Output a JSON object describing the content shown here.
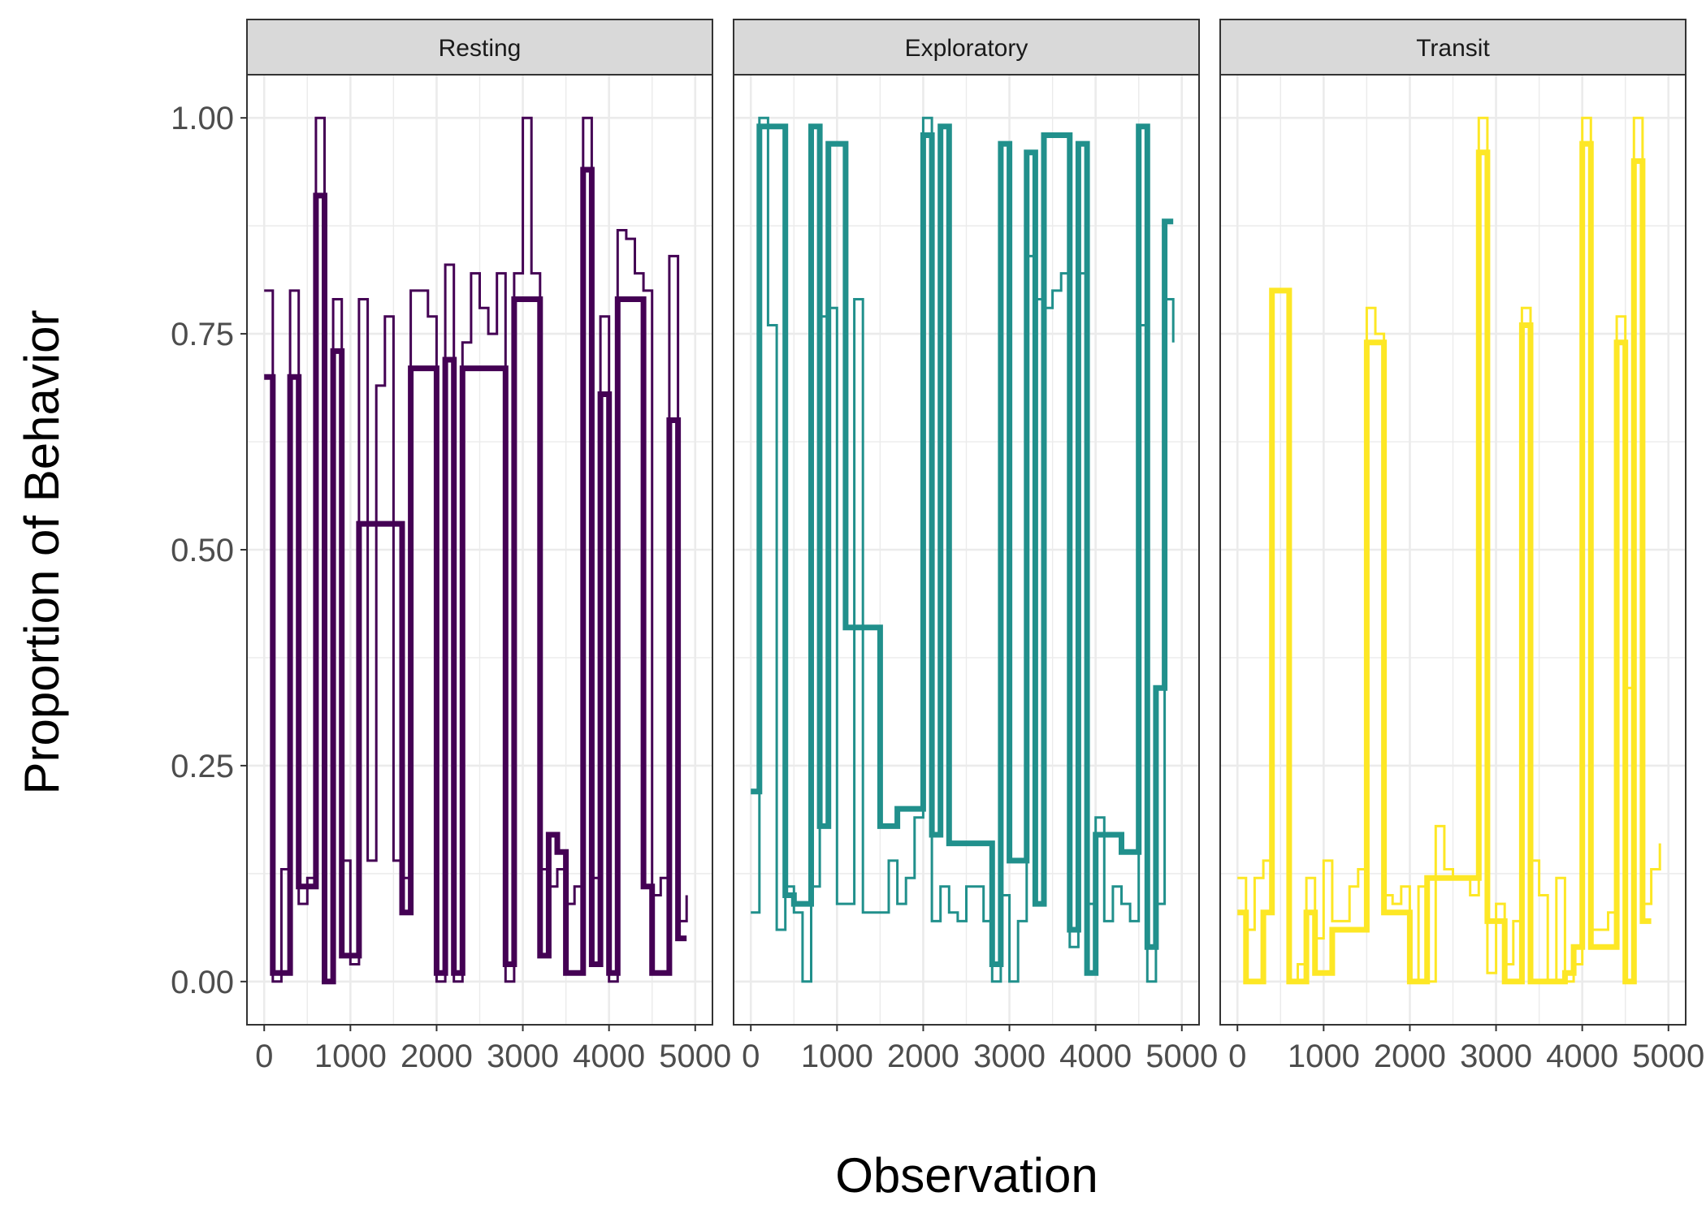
{
  "chart_data": {
    "type": "line",
    "facets": [
      "Resting",
      "Exploratory",
      "Transit"
    ],
    "xlabel": "Observation",
    "ylabel": "Proportion of Behavior",
    "x_ticks": [
      0,
      1000,
      2000,
      3000,
      4000,
      5000
    ],
    "x_tick_labels": [
      "0",
      "1000",
      "2000",
      "3000",
      "4000",
      "5000"
    ],
    "y_ticks": [
      0,
      0.25,
      0.5,
      0.75,
      1.0
    ],
    "y_tick_labels": [
      "0.00",
      "0.25",
      "0.50",
      "0.75",
      "1.00"
    ],
    "xlim": [
      -200,
      5200
    ],
    "ylim": [
      -0.05,
      1.05
    ],
    "grid": true,
    "colors": {
      "Resting": "#440154",
      "Exploratory": "#21908C",
      "Transit": "#FDE725",
      "strip_bg": "#D9D9D9",
      "grid": "#EBEBEB",
      "border": "#333333"
    },
    "panels": [
      {
        "name": "Resting",
        "thick": [
          [
            0,
            0.7
          ],
          [
            100,
            0.01
          ],
          [
            300,
            0.7
          ],
          [
            400,
            0.11
          ],
          [
            600,
            0.91
          ],
          [
            700,
            0.0
          ],
          [
            800,
            0.73
          ],
          [
            900,
            0.03
          ],
          [
            1100,
            0.53
          ],
          [
            1600,
            0.08
          ],
          [
            1700,
            0.71
          ],
          [
            2000,
            0.01
          ],
          [
            2100,
            0.72
          ],
          [
            2200,
            0.01
          ],
          [
            2300,
            0.71
          ],
          [
            2800,
            0.02
          ],
          [
            2900,
            0.79
          ],
          [
            3200,
            0.03
          ],
          [
            3300,
            0.17
          ],
          [
            3400,
            0.15
          ],
          [
            3500,
            0.01
          ],
          [
            3700,
            0.94
          ],
          [
            3800,
            0.02
          ],
          [
            3900,
            0.68
          ],
          [
            4000,
            0.01
          ],
          [
            4100,
            0.79
          ],
          [
            4400,
            0.11
          ],
          [
            4500,
            0.01
          ],
          [
            4700,
            0.65
          ],
          [
            4800,
            0.05
          ],
          [
            4900,
            0.05
          ]
        ],
        "thin": [
          [
            0,
            0.8
          ],
          [
            100,
            0.0
          ],
          [
            200,
            0.13
          ],
          [
            300,
            0.8
          ],
          [
            400,
            0.09
          ],
          [
            500,
            0.12
          ],
          [
            600,
            1.0
          ],
          [
            700,
            0.0
          ],
          [
            800,
            0.79
          ],
          [
            900,
            0.14
          ],
          [
            1000,
            0.02
          ],
          [
            1100,
            0.79
          ],
          [
            1200,
            0.14
          ],
          [
            1300,
            0.69
          ],
          [
            1400,
            0.77
          ],
          [
            1500,
            0.14
          ],
          [
            1600,
            0.12
          ],
          [
            1700,
            0.8
          ],
          [
            1900,
            0.77
          ],
          [
            2000,
            0.0
          ],
          [
            2100,
            0.83
          ],
          [
            2200,
            0.0
          ],
          [
            2300,
            0.74
          ],
          [
            2400,
            0.82
          ],
          [
            2500,
            0.78
          ],
          [
            2600,
            0.75
          ],
          [
            2700,
            0.82
          ],
          [
            2800,
            0.0
          ],
          [
            2900,
            0.82
          ],
          [
            3000,
            1.0
          ],
          [
            3100,
            0.82
          ],
          [
            3200,
            0.13
          ],
          [
            3300,
            0.11
          ],
          [
            3400,
            0.13
          ],
          [
            3500,
            0.09
          ],
          [
            3600,
            0.11
          ],
          [
            3700,
            1.0
          ],
          [
            3800,
            0.12
          ],
          [
            3900,
            0.77
          ],
          [
            4000,
            0.0
          ],
          [
            4100,
            0.87
          ],
          [
            4200,
            0.86
          ],
          [
            4300,
            0.82
          ],
          [
            4400,
            0.8
          ],
          [
            4500,
            0.1
          ],
          [
            4600,
            0.12
          ],
          [
            4700,
            0.84
          ],
          [
            4800,
            0.07
          ],
          [
            4900,
            0.1
          ]
        ]
      },
      {
        "name": "Exploratory",
        "thick": [
          [
            0,
            0.22
          ],
          [
            100,
            0.99
          ],
          [
            200,
            0.99
          ],
          [
            300,
            0.99
          ],
          [
            400,
            0.1
          ],
          [
            500,
            0.09
          ],
          [
            600,
            0.09
          ],
          [
            700,
            0.99
          ],
          [
            800,
            0.18
          ],
          [
            900,
            0.97
          ],
          [
            1100,
            0.41
          ],
          [
            1500,
            0.18
          ],
          [
            1700,
            0.2
          ],
          [
            2000,
            0.98
          ],
          [
            2100,
            0.17
          ],
          [
            2200,
            0.99
          ],
          [
            2300,
            0.16
          ],
          [
            2800,
            0.02
          ],
          [
            2900,
            0.97
          ],
          [
            3000,
            0.14
          ],
          [
            3200,
            0.96
          ],
          [
            3300,
            0.09
          ],
          [
            3400,
            0.98
          ],
          [
            3700,
            0.06
          ],
          [
            3800,
            0.97
          ],
          [
            3900,
            0.01
          ],
          [
            4000,
            0.17
          ],
          [
            4300,
            0.15
          ],
          [
            4500,
            0.99
          ],
          [
            4600,
            0.04
          ],
          [
            4700,
            0.34
          ],
          [
            4800,
            0.88
          ],
          [
            4900,
            0.88
          ]
        ],
        "thin": [
          [
            0,
            0.08
          ],
          [
            100,
            1.0
          ],
          [
            200,
            0.76
          ],
          [
            300,
            0.06
          ],
          [
            400,
            0.11
          ],
          [
            500,
            0.08
          ],
          [
            600,
            0.0
          ],
          [
            700,
            0.11
          ],
          [
            800,
            0.77
          ],
          [
            900,
            0.78
          ],
          [
            1000,
            0.09
          ],
          [
            1200,
            0.79
          ],
          [
            1300,
            0.08
          ],
          [
            1600,
            0.14
          ],
          [
            1700,
            0.09
          ],
          [
            1800,
            0.12
          ],
          [
            1900,
            0.19
          ],
          [
            2000,
            1.0
          ],
          [
            2100,
            0.07
          ],
          [
            2200,
            0.11
          ],
          [
            2300,
            0.08
          ],
          [
            2400,
            0.07
          ],
          [
            2500,
            0.11
          ],
          [
            2700,
            0.07
          ],
          [
            2800,
            0.0
          ],
          [
            2900,
            0.1
          ],
          [
            3000,
            0.0
          ],
          [
            3100,
            0.07
          ],
          [
            3200,
            0.84
          ],
          [
            3300,
            0.79
          ],
          [
            3400,
            0.78
          ],
          [
            3500,
            0.8
          ],
          [
            3600,
            0.82
          ],
          [
            3700,
            0.04
          ],
          [
            3800,
            0.82
          ],
          [
            3900,
            0.09
          ],
          [
            4000,
            0.19
          ],
          [
            4100,
            0.07
          ],
          [
            4200,
            0.11
          ],
          [
            4300,
            0.09
          ],
          [
            4400,
            0.07
          ],
          [
            4500,
            0.76
          ],
          [
            4600,
            0.0
          ],
          [
            4700,
            0.09
          ],
          [
            4800,
            0.79
          ],
          [
            4900,
            0.74
          ]
        ]
      },
      {
        "name": "Transit",
        "thick": [
          [
            0,
            0.08
          ],
          [
            100,
            0.0
          ],
          [
            300,
            0.08
          ],
          [
            400,
            0.8
          ],
          [
            600,
            0.0
          ],
          [
            800,
            0.08
          ],
          [
            900,
            0.01
          ],
          [
            1100,
            0.06
          ],
          [
            1500,
            0.74
          ],
          [
            1700,
            0.08
          ],
          [
            2000,
            0.0
          ],
          [
            2200,
            0.12
          ],
          [
            2800,
            0.96
          ],
          [
            2900,
            0.07
          ],
          [
            3100,
            0.0
          ],
          [
            3300,
            0.76
          ],
          [
            3400,
            0.0
          ],
          [
            3800,
            0.01
          ],
          [
            3900,
            0.04
          ],
          [
            4000,
            0.97
          ],
          [
            4100,
            0.04
          ],
          [
            4400,
            0.74
          ],
          [
            4500,
            0.0
          ],
          [
            4600,
            0.95
          ],
          [
            4700,
            0.07
          ],
          [
            4800,
            0.07
          ]
        ],
        "thin": [
          [
            0,
            0.12
          ],
          [
            100,
            0.06
          ],
          [
            200,
            0.12
          ],
          [
            300,
            0.14
          ],
          [
            400,
            0.8
          ],
          [
            600,
            0.0
          ],
          [
            700,
            0.02
          ],
          [
            800,
            0.12
          ],
          [
            900,
            0.05
          ],
          [
            1000,
            0.14
          ],
          [
            1100,
            0.07
          ],
          [
            1300,
            0.11
          ],
          [
            1400,
            0.13
          ],
          [
            1500,
            0.78
          ],
          [
            1600,
            0.75
          ],
          [
            1700,
            0.1
          ],
          [
            1800,
            0.09
          ],
          [
            1900,
            0.11
          ],
          [
            2000,
            0.0
          ],
          [
            2100,
            0.11
          ],
          [
            2200,
            0.0
          ],
          [
            2300,
            0.18
          ],
          [
            2400,
            0.13
          ],
          [
            2500,
            0.12
          ],
          [
            2700,
            0.1
          ],
          [
            2800,
            1.0
          ],
          [
            2900,
            0.01
          ],
          [
            3000,
            0.09
          ],
          [
            3100,
            0.02
          ],
          [
            3200,
            0.07
          ],
          [
            3300,
            0.78
          ],
          [
            3400,
            0.14
          ],
          [
            3500,
            0.1
          ],
          [
            3600,
            0.0
          ],
          [
            3700,
            0.12
          ],
          [
            3800,
            0.0
          ],
          [
            3900,
            0.02
          ],
          [
            4000,
            1.0
          ],
          [
            4100,
            0.06
          ],
          [
            4300,
            0.08
          ],
          [
            4400,
            0.77
          ],
          [
            4500,
            0.34
          ],
          [
            4600,
            1.0
          ],
          [
            4700,
            0.09
          ],
          [
            4800,
            0.13
          ],
          [
            4900,
            0.16
          ]
        ]
      }
    ]
  }
}
